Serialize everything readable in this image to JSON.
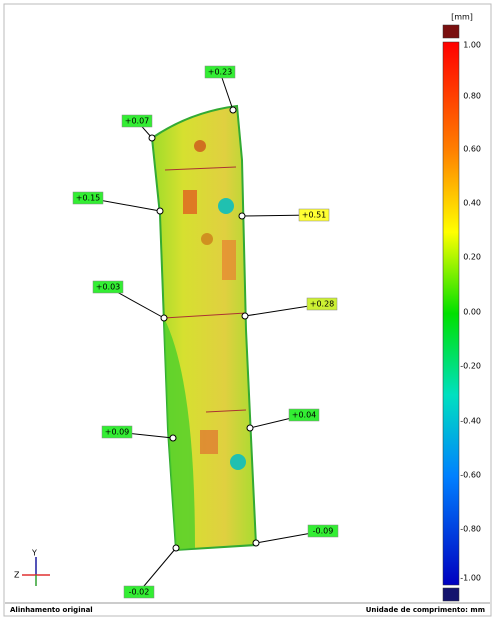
{
  "scale": {
    "unit": "[mm]",
    "ticks": [
      "1.00",
      "0.80",
      "0.60",
      "0.40",
      "0.20",
      "0.00",
      "-0.20",
      "-0.40",
      "-0.60",
      "-0.80",
      "-1.00"
    ]
  },
  "callouts": [
    {
      "label": "+0.23",
      "color": "#33ee33"
    },
    {
      "label": "+0.07",
      "color": "#33ee33"
    },
    {
      "label": "+0.15",
      "color": "#33ee33"
    },
    {
      "label": "+0.51",
      "color": "#ffff33"
    },
    {
      "label": "+0.03",
      "color": "#33ee33"
    },
    {
      "label": "+0.28",
      "color": "#ccf033"
    },
    {
      "label": "+0.04",
      "color": "#33ee33"
    },
    {
      "label": "+0.09",
      "color": "#33ee33"
    },
    {
      "label": "-0.09",
      "color": "#33ee33"
    },
    {
      "label": "-0.02",
      "color": "#33ee33"
    }
  ],
  "triad": {
    "z": "Z",
    "y": "Y"
  },
  "footer": {
    "left": "Alinhamento original",
    "right": "Unidade de comprimento: mm"
  }
}
